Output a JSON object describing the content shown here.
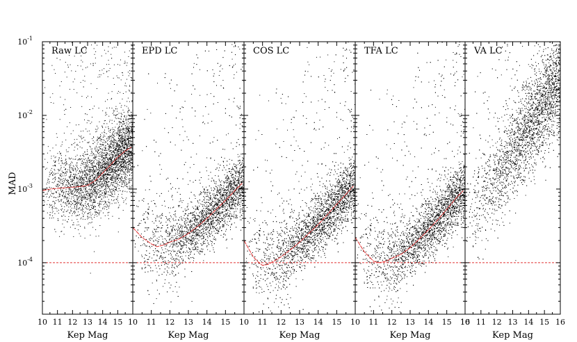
{
  "figure": {
    "ylabel": "MAD",
    "xlabel": "Kep Mag",
    "yscale": "log",
    "ylim": [
      2e-05,
      0.1
    ],
    "xlim": [
      10,
      16
    ],
    "y_ticks": [
      {
        "value": 0.1,
        "base": "10",
        "exp": "-1"
      },
      {
        "value": 0.01,
        "base": "10",
        "exp": "-2"
      },
      {
        "value": 0.001,
        "base": "10",
        "exp": "-3"
      },
      {
        "value": 0.0001,
        "base": "10",
        "exp": "-4"
      }
    ],
    "reference_line": {
      "y": 0.0001,
      "style": "dashed",
      "color": "#e03030"
    },
    "colors": {
      "points": "#000000",
      "trend": "#e03030"
    }
  },
  "chart_data": [
    {
      "type": "scatter",
      "title": "Raw LC",
      "xlabel": "Kep Mag",
      "x_ticks": [
        "10",
        "11",
        "12",
        "13",
        "14",
        "15"
      ],
      "trend": {
        "x": [
          10.0,
          10.5,
          11.0,
          11.5,
          12.0,
          12.5,
          13.0,
          13.5,
          14.0,
          14.5,
          15.0,
          15.5,
          15.9
        ],
        "y": [
          0.00095,
          0.001,
          0.00102,
          0.00104,
          0.00106,
          0.00108,
          0.00112,
          0.0013,
          0.00165,
          0.0021,
          0.0027,
          0.0033,
          0.0037
        ]
      }
    },
    {
      "type": "scatter",
      "title": "EPD LC",
      "xlabel": "Kep Mag",
      "x_ticks": [
        "10",
        "11",
        "12",
        "13",
        "14",
        "15"
      ],
      "trend": {
        "x": [
          10.0,
          10.5,
          11.0,
          11.3,
          11.7,
          12.0,
          12.5,
          13.0,
          13.5,
          14.0,
          14.5,
          15.0,
          15.5,
          15.9
        ],
        "y": [
          0.0003,
          0.00022,
          0.00018,
          0.000165,
          0.000175,
          0.00019,
          0.00021,
          0.00025,
          0.00031,
          0.0004,
          0.00053,
          0.0007,
          0.00095,
          0.0012
        ]
      }
    },
    {
      "type": "scatter",
      "title": "COS LC",
      "xlabel": "Kep Mag",
      "x_ticks": [
        "10",
        "11",
        "12",
        "13",
        "14",
        "15"
      ],
      "trend": {
        "x": [
          10.0,
          10.5,
          10.8,
          11.0,
          11.3,
          11.7,
          12.0,
          12.5,
          13.0,
          13.5,
          14.0,
          14.5,
          15.0,
          15.5,
          15.9
        ],
        "y": [
          0.0002,
          0.00012,
          0.0001,
          9.2e-05,
          9.5e-05,
          0.000108,
          0.00012,
          0.00015,
          0.00019,
          0.00025,
          0.00033,
          0.00045,
          0.00062,
          0.00085,
          0.0011
        ]
      }
    },
    {
      "type": "scatter",
      "title": "TFA LC",
      "xlabel": "Kep Mag",
      "x_ticks": [
        "10",
        "11",
        "12",
        "13",
        "14",
        "15",
        "16"
      ],
      "trend": {
        "x": [
          10.0,
          10.5,
          11.0,
          11.3,
          11.7,
          12.0,
          12.5,
          13.0,
          13.5,
          14.0,
          14.5,
          15.0,
          15.5,
          15.9
        ],
        "y": [
          0.00022,
          0.00014,
          0.000105,
          0.0001,
          0.000105,
          0.000115,
          0.00013,
          0.00016,
          0.00021,
          0.00028,
          0.00038,
          0.00053,
          0.00075,
          0.00095
        ]
      }
    },
    {
      "type": "scatter",
      "title": "VA LC",
      "xlabel": "Kep Mag",
      "x_ticks": [
        "10",
        "11",
        "12",
        "13",
        "14",
        "15",
        "16"
      ],
      "trend": null
    }
  ]
}
